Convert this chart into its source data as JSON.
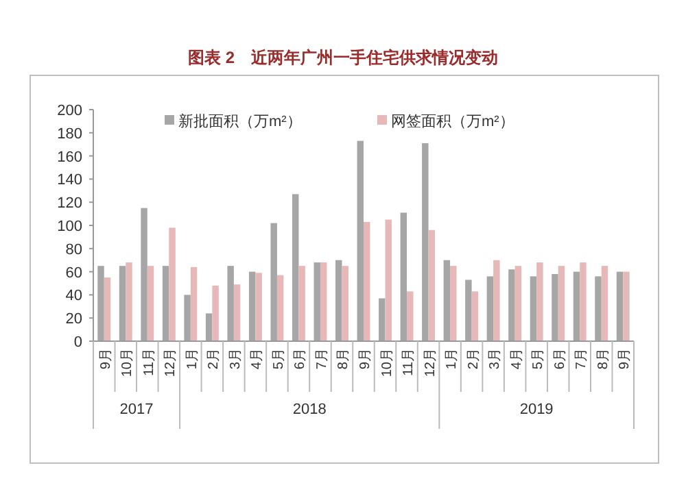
{
  "chart_data": {
    "type": "bar",
    "title": "图表 2　近两年广州一手住宅供求情况变动",
    "categories": [
      "9月",
      "10月",
      "11月",
      "12月",
      "1月",
      "2月",
      "3月",
      "4月",
      "5月",
      "6月",
      "7月",
      "8月",
      "9月",
      "10月",
      "11月",
      "12月",
      "1月",
      "2月",
      "3月",
      "4月",
      "5月",
      "6月",
      "7月",
      "8月",
      "9月"
    ],
    "series": [
      {
        "name": "新批面积（万m²）",
        "color": "#a6a6a6",
        "values": [
          65,
          65,
          115,
          65,
          40,
          24,
          65,
          60,
          102,
          127,
          68,
          70,
          173,
          37,
          111,
          171,
          70,
          53,
          56,
          62,
          56,
          58,
          60,
          56,
          60
        ]
      },
      {
        "name": "网签面积（万m²）",
        "color": "#e6b9b8",
        "values": [
          55,
          68,
          65,
          98,
          64,
          48,
          49,
          59,
          57,
          65,
          68,
          65,
          103,
          105,
          43,
          96,
          65,
          43,
          70,
          65,
          68,
          65,
          68,
          65,
          60
        ]
      }
    ],
    "ylim": [
      0,
      200
    ],
    "yticks": [
      0,
      20,
      40,
      60,
      80,
      100,
      120,
      140,
      160,
      180,
      200
    ],
    "legend": "top",
    "grid": false,
    "annotations": [
      "2017",
      "2018",
      "2019"
    ]
  }
}
